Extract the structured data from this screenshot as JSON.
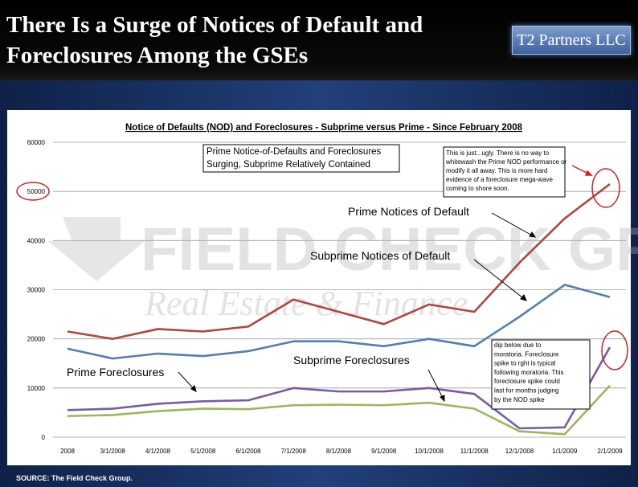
{
  "slide": {
    "title_line1": "There Is a Surge of Notices of Default and",
    "title_line2": "Foreclosures Among the GSEs",
    "logo": "T2 Partners LLC",
    "source": "SOURCE: The Field Check Group."
  },
  "watermark": {
    "line1": "FIELD CHECK GROUP",
    "line2": "Real Estate & Finance"
  },
  "colors": {
    "prime_nod": "#b0463f",
    "subprime_nod": "#4f7fb6",
    "prime_fc": "#7a5aa6",
    "subprime_fc": "#9bb75a",
    "highlight": "#d42020"
  },
  "chart_data": {
    "type": "line",
    "title": "Notice of Defaults (NOD) and Foreclosures - Subprime versus Prime - Since February 2008",
    "categories": [
      "2008",
      "3/1/2008",
      "4/1/2008",
      "5/1/2008",
      "6/1/2008",
      "7/1/2008",
      "8/1/2008",
      "9/1/2008",
      "10/1/2008",
      "11/1/2008",
      "12/1/2008",
      "1/1/2009",
      "2/1/2009"
    ],
    "ylim": [
      0,
      60000
    ],
    "yticks": [
      "0",
      "10000",
      "20000",
      "30000",
      "40000",
      "50000",
      "60000"
    ],
    "series": [
      {
        "name": "Prime Notices of Default",
        "values": [
          21500,
          20000,
          22000,
          21500,
          22500,
          28000,
          25500,
          23000,
          27000,
          25500,
          35500,
          44500,
          51500
        ]
      },
      {
        "name": "Subprime Notices of Default",
        "values": [
          18000,
          16000,
          17000,
          16500,
          17500,
          19500,
          19500,
          18500,
          20000,
          18500,
          24500,
          31000,
          28500
        ]
      },
      {
        "name": "Prime Foreclosures",
        "values": [
          5500,
          5800,
          6800,
          7300,
          7500,
          10000,
          9300,
          9300,
          10000,
          8800,
          1800,
          2000,
          18300
        ]
      },
      {
        "name": "Subprime Foreclosures",
        "values": [
          4300,
          4500,
          5300,
          5800,
          5700,
          6500,
          6600,
          6500,
          7000,
          5800,
          1200,
          600,
          10500
        ]
      }
    ],
    "labels": {
      "prime_nod": "Prime Notices of Default",
      "subprime_nod": "Subprime Notices of Default",
      "prime_fc": "Prime Foreclosures",
      "subprime_fc": "Subprime Foreclosures"
    },
    "annotations": {
      "box1_line1": "Prime Notice-of-Defaults and Foreclosures",
      "box1_line2": "Surging, Subprime Relatively Contained",
      "box2": [
        "This is just...ugly. There is no way to",
        "whitewash the Prime NOD performance or",
        "modify it all away. This is more hard",
        "evidence of a foreclosure mega-wave",
        "coming to shore soon."
      ],
      "box3": [
        "dip below due to",
        "moratoria. Foreclosure",
        "spike to rght is typical",
        "following moratoria. This",
        "foreclosure spike could",
        "last for months judging",
        "by the NOD spike"
      ]
    }
  }
}
